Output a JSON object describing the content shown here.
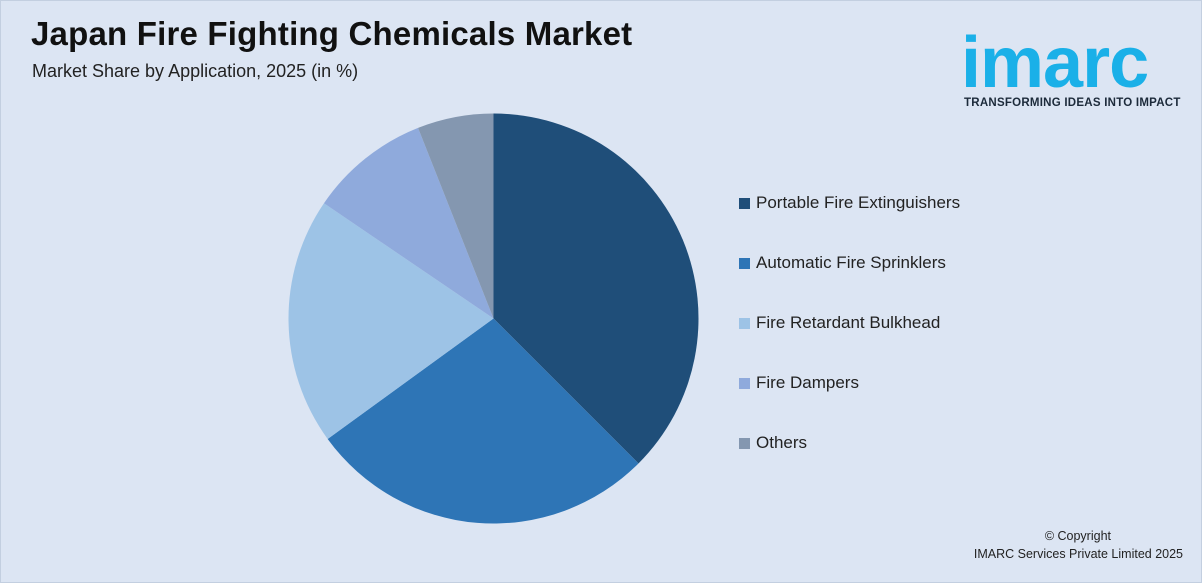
{
  "header": {
    "title": "Japan Fire Fighting Chemicals Market",
    "subtitle": "Market Share by Application, 2025 (in %)"
  },
  "logo": {
    "word": "imarc",
    "tagline": "TRANSFORMING IDEAS INTO IMPACT",
    "color": "#1ab0e8"
  },
  "chart_data": {
    "type": "pie",
    "title": "Japan Fire Fighting Chemicals Market",
    "subtitle": "Market Share by Application, 2025 (in %)",
    "legend_position": "right",
    "categories": [
      "Portable Fire Extinguishers",
      "Automatic Fire Sprinklers",
      "Fire Retardant Bulkhead",
      "Fire Dampers",
      "Others"
    ],
    "values": [
      37.5,
      27.5,
      19.5,
      9.5,
      6.0
    ],
    "colors": [
      "#1f4e79",
      "#2e75b6",
      "#9dc3e6",
      "#8faadc",
      "#8497b0"
    ]
  },
  "footer": {
    "copyright_line1": "© Copyright",
    "copyright_line2": "IMARC Services Private Limited 2025"
  }
}
